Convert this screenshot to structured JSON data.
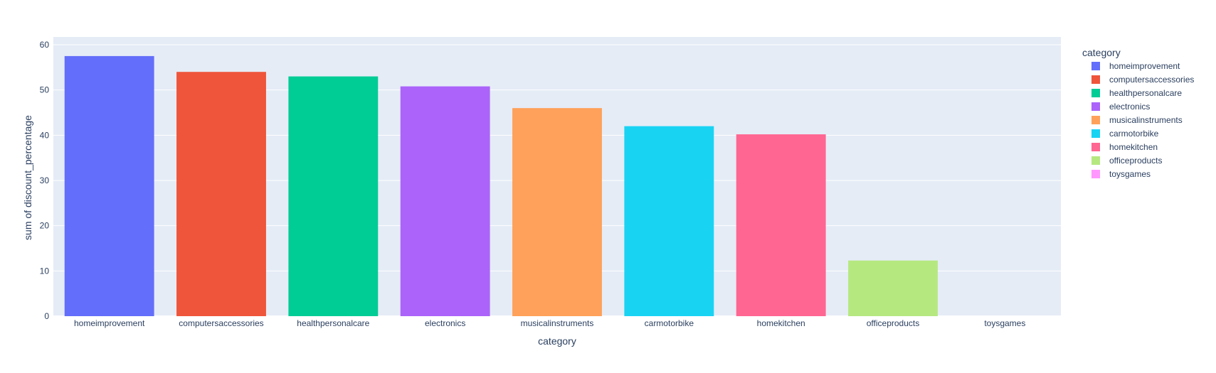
{
  "chart_data": {
    "type": "bar",
    "categories": [
      "homeimprovement",
      "computersaccessories",
      "healthpersonalcare",
      "electronics",
      "musicalinstruments",
      "carmotorbike",
      "homekitchen",
      "officeproducts",
      "toysgames"
    ],
    "values": [
      57.5,
      54,
      53,
      50.8,
      46,
      42,
      40.2,
      12.3,
      0
    ],
    "colors": [
      "#636efa",
      "#EF553B",
      "#00cc96",
      "#ab63fa",
      "#FFA15A",
      "#19d3f3",
      "#FF6692",
      "#B6E880",
      "#FF97FF"
    ],
    "xlabel": "category",
    "ylabel": "sum of discount_percentage",
    "ylim": [
      0,
      60
    ],
    "yticks": [
      0,
      10,
      20,
      30,
      40,
      50,
      60
    ],
    "grid": true,
    "legend": {
      "title": "category",
      "placement": "top-right",
      "entries": [
        "homeimprovement",
        "computersaccessories",
        "healthpersonalcare",
        "electronics",
        "musicalinstruments",
        "carmotorbike",
        "homekitchen",
        "officeproducts",
        "toysgames"
      ]
    },
    "plot_background": "#e5ecf6"
  }
}
